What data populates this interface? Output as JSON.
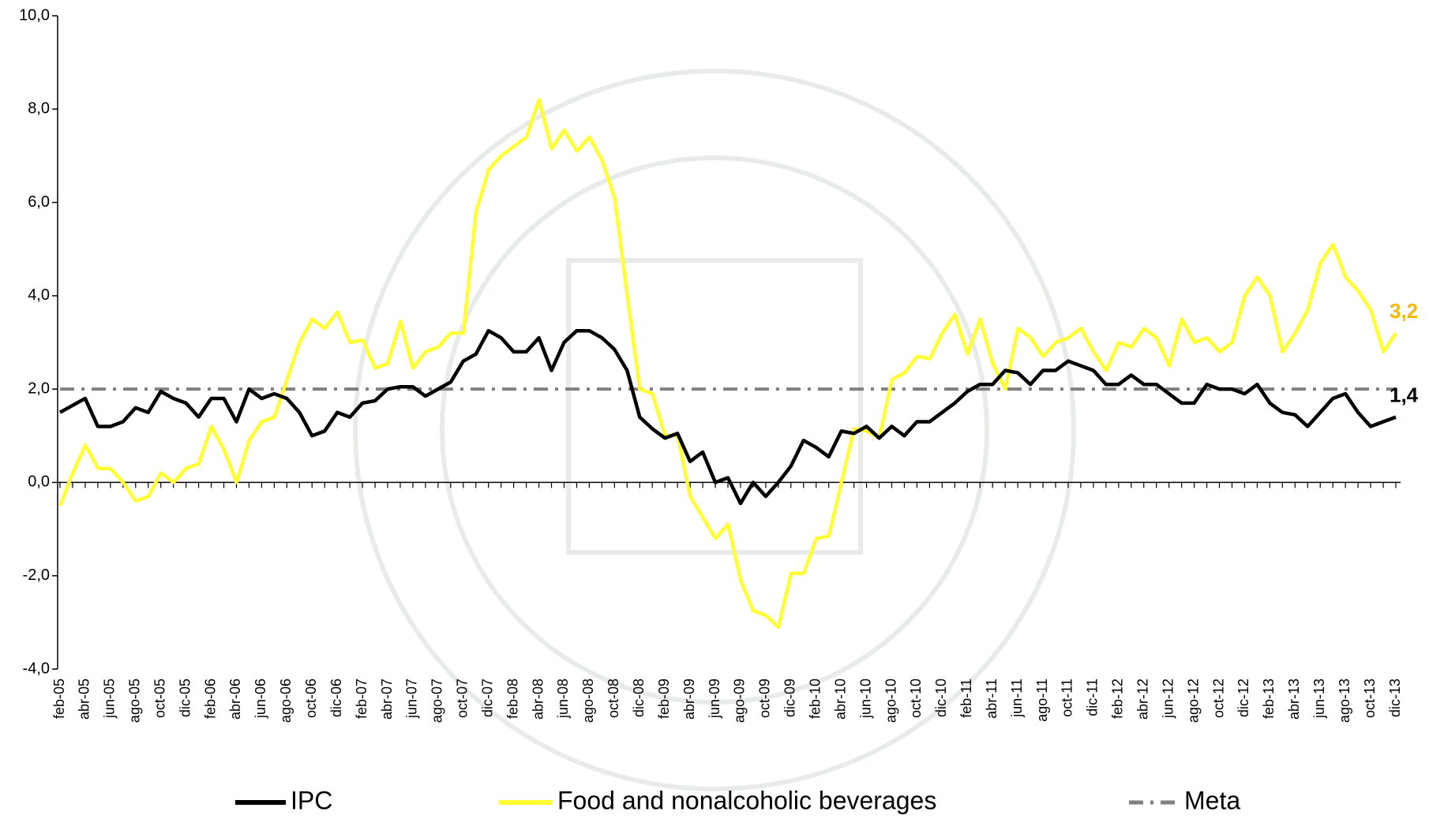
{
  "chart_data": {
    "type": "line",
    "categories": [
      "feb-05",
      null,
      "abr-05",
      null,
      "jun-05",
      null,
      "ago-05",
      null,
      "oct-05",
      null,
      "dic-05",
      null,
      "feb-06",
      null,
      "abr-06",
      null,
      "jun-06",
      null,
      "ago-06",
      null,
      "oct-06",
      null,
      "dic-06",
      null,
      "feb-07",
      null,
      "abr-07",
      null,
      "jun-07",
      null,
      "ago-07",
      null,
      "oct-07",
      null,
      "dic-07",
      null,
      "feb-08",
      null,
      "abr-08",
      null,
      "jun-08",
      null,
      "ago-08",
      null,
      "oct-08",
      null,
      "dic-08",
      null,
      "feb-09",
      null,
      "abr-09",
      null,
      "jun-09",
      null,
      "ago-09",
      null,
      "oct-09",
      null,
      "dic-09",
      null,
      "feb-10",
      null,
      "abr-10",
      null,
      "jun-10",
      null,
      "ago-10",
      null,
      "oct-10",
      null,
      "dic-10",
      null,
      "feb-11",
      null,
      "abr-11",
      null,
      "jun-11",
      null,
      "ago-11",
      null,
      "oct-11",
      null,
      "dic-11",
      null,
      "feb-12",
      null,
      "abr-12",
      null,
      "jun-12",
      null,
      "ago-12",
      null,
      "oct-12",
      null,
      "dic-12",
      null,
      "feb-13",
      null,
      "abr-13",
      null,
      "jun-13",
      null,
      "ago-13",
      null,
      "oct-13",
      null,
      "dic-13"
    ],
    "series": [
      {
        "name": "IPC",
        "color": "#000000",
        "label_color": "#000000",
        "last_label": "1,4",
        "values": [
          1.5,
          1.65,
          1.8,
          1.2,
          1.2,
          1.3,
          1.6,
          1.5,
          1.95,
          1.8,
          1.7,
          1.4,
          1.8,
          1.8,
          1.3,
          2.0,
          1.8,
          1.9,
          1.8,
          1.5,
          1.0,
          1.1,
          1.5,
          1.4,
          1.7,
          1.75,
          2.0,
          2.05,
          2.05,
          1.85,
          2.0,
          2.15,
          2.6,
          2.75,
          3.25,
          3.1,
          2.8,
          2.8,
          3.1,
          2.4,
          3.0,
          3.25,
          3.25,
          3.1,
          2.85,
          2.4,
          1.4,
          1.15,
          0.95,
          1.05,
          0.45,
          0.65,
          0.0,
          0.1,
          -0.45,
          0.0,
          -0.3,
          0.0,
          0.35,
          0.9,
          0.75,
          0.55,
          1.1,
          1.05,
          1.2,
          0.95,
          1.2,
          1.0,
          1.3,
          1.3,
          1.5,
          1.7,
          1.95,
          2.1,
          2.1,
          2.4,
          2.35,
          2.1,
          2.4,
          2.4,
          2.6,
          2.5,
          2.4,
          2.1,
          2.1,
          2.3,
          2.1,
          2.1,
          1.9,
          1.7,
          1.7,
          2.1,
          2.0,
          2.0,
          1.9,
          2.1,
          1.7,
          1.5,
          1.45,
          1.2,
          1.5,
          1.8,
          1.9,
          1.5,
          1.2,
          1.3,
          1.4
        ]
      },
      {
        "name": "Food and nonalcoholic beverages",
        "color": "#ffff33",
        "label_color": "#f5b800",
        "last_label": "3,2",
        "values": [
          -0.5,
          0.2,
          0.8,
          0.3,
          0.3,
          0.0,
          -0.4,
          -0.3,
          0.2,
          0.0,
          0.3,
          0.4,
          1.2,
          0.7,
          0.0,
          0.9,
          1.3,
          1.4,
          2.2,
          3.0,
          3.5,
          3.3,
          3.65,
          3.0,
          3.05,
          2.45,
          2.55,
          3.45,
          2.45,
          2.8,
          2.9,
          3.2,
          3.2,
          5.8,
          6.7,
          7.0,
          7.2,
          7.4,
          8.2,
          7.15,
          7.55,
          7.1,
          7.4,
          6.9,
          6.1,
          4.0,
          2.0,
          1.9,
          1.0,
          1.0,
          -0.3,
          -0.75,
          -1.2,
          -0.9,
          -2.1,
          -2.75,
          -2.85,
          -3.1,
          -1.95,
          -1.95,
          -1.2,
          -1.15,
          0.0,
          1.15,
          1.1,
          0.95,
          2.2,
          2.35,
          2.7,
          2.65,
          3.2,
          3.6,
          2.75,
          3.5,
          2.55,
          2.0,
          3.3,
          3.1,
          2.7,
          3.0,
          3.1,
          3.3,
          2.8,
          2.4,
          3.0,
          2.9,
          3.3,
          3.1,
          2.5,
          3.5,
          3.0,
          3.1,
          2.8,
          3.0,
          4.0,
          4.4,
          4.0,
          2.8,
          3.2,
          3.7,
          4.7,
          5.1,
          4.4,
          4.1,
          3.7,
          2.8,
          3.2
        ]
      }
    ],
    "reference_lines": [
      {
        "name": "Meta",
        "value": 2,
        "color": "#808080"
      }
    ],
    "ylim": [
      -4,
      10
    ],
    "yticks": [
      {
        "value": -4,
        "label": "-4,0"
      },
      {
        "value": -2,
        "label": "-2,0"
      },
      {
        "value": 0,
        "label": "0,0"
      },
      {
        "value": 2,
        "label": "2,0"
      },
      {
        "value": 4,
        "label": "4,0"
      },
      {
        "value": 6,
        "label": "6,0"
      },
      {
        "value": 8,
        "label": "8,0"
      },
      {
        "value": 10,
        "label": "10,0"
      }
    ],
    "grid": false,
    "legend": "bottom"
  }
}
